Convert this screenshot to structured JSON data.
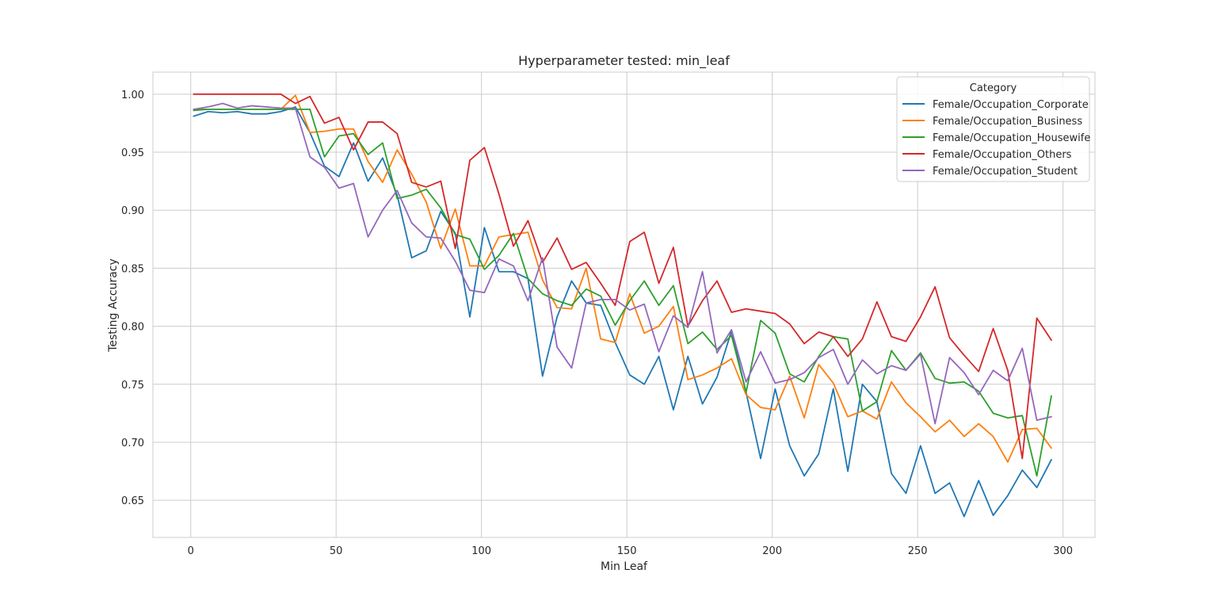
{
  "chart_data": {
    "type": "line",
    "title": "Hyperparameter tested: min_leaf",
    "xlabel": "Min Leaf",
    "ylabel": "Testing Accuracy",
    "xlim": [
      -13,
      311
    ],
    "ylim": [
      0.618,
      1.019
    ],
    "xticks": [
      0,
      50,
      100,
      150,
      200,
      250,
      300
    ],
    "yticks": [
      0.65,
      0.7,
      0.75,
      0.8,
      0.85,
      0.9,
      0.95,
      1.0
    ],
    "ytick_labels": [
      "0.65",
      "0.70",
      "0.75",
      "0.80",
      "0.85",
      "0.90",
      "0.95",
      "1.00"
    ],
    "grid": true,
    "legend": {
      "title": "Category",
      "position": "top-right"
    },
    "x": [
      1,
      6,
      11,
      16,
      21,
      26,
      31,
      36,
      41,
      46,
      51,
      56,
      61,
      66,
      71,
      76,
      81,
      86,
      91,
      96,
      101,
      106,
      111,
      116,
      121,
      126,
      131,
      136,
      141,
      146,
      151,
      156,
      161,
      166,
      171,
      176,
      181,
      186,
      191,
      196,
      201,
      206,
      211,
      216,
      221,
      226,
      231,
      236,
      241,
      246,
      251,
      256,
      261,
      266,
      271,
      276,
      281,
      286,
      291,
      296
    ],
    "series": [
      {
        "name": "Female/Occupation_Corporate",
        "color": "#1f77b4",
        "values": [
          0.981,
          0.985,
          0.984,
          0.985,
          0.983,
          0.983,
          0.985,
          0.989,
          0.967,
          0.938,
          0.929,
          0.958,
          0.925,
          0.945,
          0.913,
          0.859,
          0.865,
          0.899,
          0.88,
          0.808,
          0.885,
          0.847,
          0.847,
          0.841,
          0.757,
          0.808,
          0.839,
          0.82,
          0.818,
          0.786,
          0.758,
          0.75,
          0.774,
          0.728,
          0.774,
          0.733,
          0.756,
          0.796,
          0.743,
          0.686,
          0.746,
          0.697,
          0.671,
          0.69,
          0.746,
          0.675,
          0.75,
          0.735,
          0.673,
          0.656,
          0.697,
          0.656,
          0.665,
          0.636,
          0.667,
          0.637,
          0.654,
          0.676,
          0.661,
          0.685
        ]
      },
      {
        "name": "Female/Occupation_Business",
        "color": "#ff7f0e",
        "values": [
          0.987,
          0.987,
          0.987,
          0.987,
          0.987,
          0.987,
          0.987,
          0.999,
          0.967,
          0.968,
          0.97,
          0.97,
          0.942,
          0.924,
          0.952,
          0.931,
          0.907,
          0.867,
          0.901,
          0.852,
          0.852,
          0.877,
          0.879,
          0.881,
          0.84,
          0.816,
          0.815,
          0.85,
          0.789,
          0.786,
          0.828,
          0.794,
          0.8,
          0.817,
          0.754,
          0.758,
          0.764,
          0.772,
          0.741,
          0.73,
          0.728,
          0.757,
          0.721,
          0.767,
          0.751,
          0.722,
          0.727,
          0.72,
          0.752,
          0.734,
          0.722,
          0.709,
          0.719,
          0.705,
          0.716,
          0.705,
          0.683,
          0.711,
          0.712,
          0.695
        ]
      },
      {
        "name": "Female/Occupation_Housewife",
        "color": "#2ca02c",
        "values": [
          0.986,
          0.987,
          0.987,
          0.987,
          0.987,
          0.987,
          0.987,
          0.987,
          0.987,
          0.946,
          0.964,
          0.966,
          0.948,
          0.958,
          0.91,
          0.913,
          0.918,
          0.902,
          0.879,
          0.875,
          0.849,
          0.861,
          0.88,
          0.841,
          0.828,
          0.822,
          0.818,
          0.832,
          0.826,
          0.801,
          0.822,
          0.839,
          0.818,
          0.835,
          0.785,
          0.795,
          0.78,
          0.792,
          0.743,
          0.805,
          0.794,
          0.759,
          0.752,
          0.774,
          0.791,
          0.789,
          0.727,
          0.735,
          0.779,
          0.762,
          0.777,
          0.755,
          0.751,
          0.752,
          0.744,
          0.725,
          0.721,
          0.723,
          0.671,
          0.74
        ]
      },
      {
        "name": "Female/Occupation_Others",
        "color": "#d62728",
        "values": [
          1.0,
          1.0,
          1.0,
          1.0,
          1.0,
          1.0,
          1.0,
          0.992,
          0.998,
          0.975,
          0.98,
          0.952,
          0.976,
          0.976,
          0.966,
          0.924,
          0.92,
          0.925,
          0.867,
          0.943,
          0.954,
          0.914,
          0.869,
          0.891,
          0.855,
          0.876,
          0.849,
          0.855,
          0.837,
          0.818,
          0.873,
          0.881,
          0.837,
          0.868,
          0.8,
          0.822,
          0.839,
          0.812,
          0.815,
          0.813,
          0.811,
          0.802,
          0.785,
          0.795,
          0.791,
          0.774,
          0.789,
          0.821,
          0.791,
          0.787,
          0.808,
          0.834,
          0.79,
          0.775,
          0.761,
          0.798,
          0.762,
          0.686,
          0.807,
          0.788
        ]
      },
      {
        "name": "Female/Occupation_Student",
        "color": "#9467bd",
        "values": [
          0.987,
          0.989,
          0.992,
          0.988,
          0.99,
          0.989,
          0.988,
          0.988,
          0.946,
          0.937,
          0.919,
          0.923,
          0.877,
          0.9,
          0.917,
          0.889,
          0.877,
          0.876,
          0.856,
          0.831,
          0.829,
          0.858,
          0.852,
          0.822,
          0.859,
          0.782,
          0.764,
          0.82,
          0.823,
          0.823,
          0.814,
          0.819,
          0.778,
          0.809,
          0.799,
          0.847,
          0.777,
          0.797,
          0.752,
          0.778,
          0.751,
          0.754,
          0.76,
          0.773,
          0.78,
          0.75,
          0.771,
          0.759,
          0.766,
          0.762,
          0.776,
          0.716,
          0.773,
          0.76,
          0.741,
          0.762,
          0.753,
          0.781,
          0.719,
          0.722
        ]
      }
    ]
  }
}
